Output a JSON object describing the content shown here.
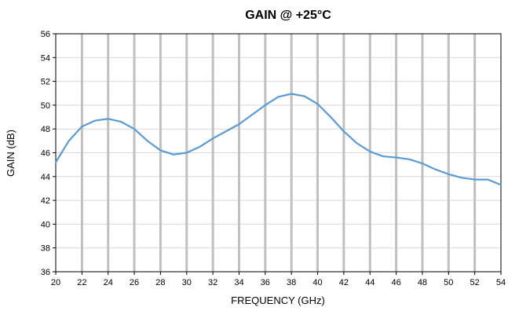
{
  "chart_data": {
    "type": "line",
    "title": "GAIN @ +25°C",
    "xlabel": "FREQUENCY (GHz)",
    "ylabel": "GAIN (dB)",
    "xlim": [
      20,
      54
    ],
    "ylim": [
      36,
      56
    ],
    "xticks": [
      20,
      22,
      24,
      26,
      28,
      30,
      32,
      34,
      36,
      38,
      40,
      42,
      44,
      46,
      48,
      50,
      52,
      54
    ],
    "yticks": [
      36,
      38,
      40,
      42,
      44,
      46,
      48,
      50,
      52,
      54,
      56
    ],
    "grid": {
      "vertical": true,
      "horizontal": true
    },
    "colors": {
      "series": "#5b9bd5",
      "vgrid": "#c0c0c0",
      "hgrid": "#d9d9d9",
      "axis": "#000000"
    },
    "series": [
      {
        "x": [
          20,
          21,
          22,
          23,
          24,
          25,
          26,
          27,
          28,
          29,
          30,
          31,
          32,
          33,
          34,
          35,
          36,
          37,
          38,
          39,
          40,
          41,
          42,
          43,
          44,
          45,
          46,
          47,
          48,
          49,
          50,
          51,
          52,
          53,
          54
        ],
        "values": [
          45.2,
          47.0,
          48.2,
          48.7,
          48.85,
          48.6,
          48.0,
          47.0,
          46.2,
          45.85,
          46.0,
          46.5,
          47.2,
          47.8,
          48.4,
          49.2,
          50.0,
          50.7,
          50.95,
          50.75,
          50.1,
          49.0,
          47.8,
          46.8,
          46.1,
          45.7,
          45.6,
          45.45,
          45.1,
          44.6,
          44.2,
          43.9,
          43.75,
          43.75,
          43.3
        ]
      }
    ]
  }
}
